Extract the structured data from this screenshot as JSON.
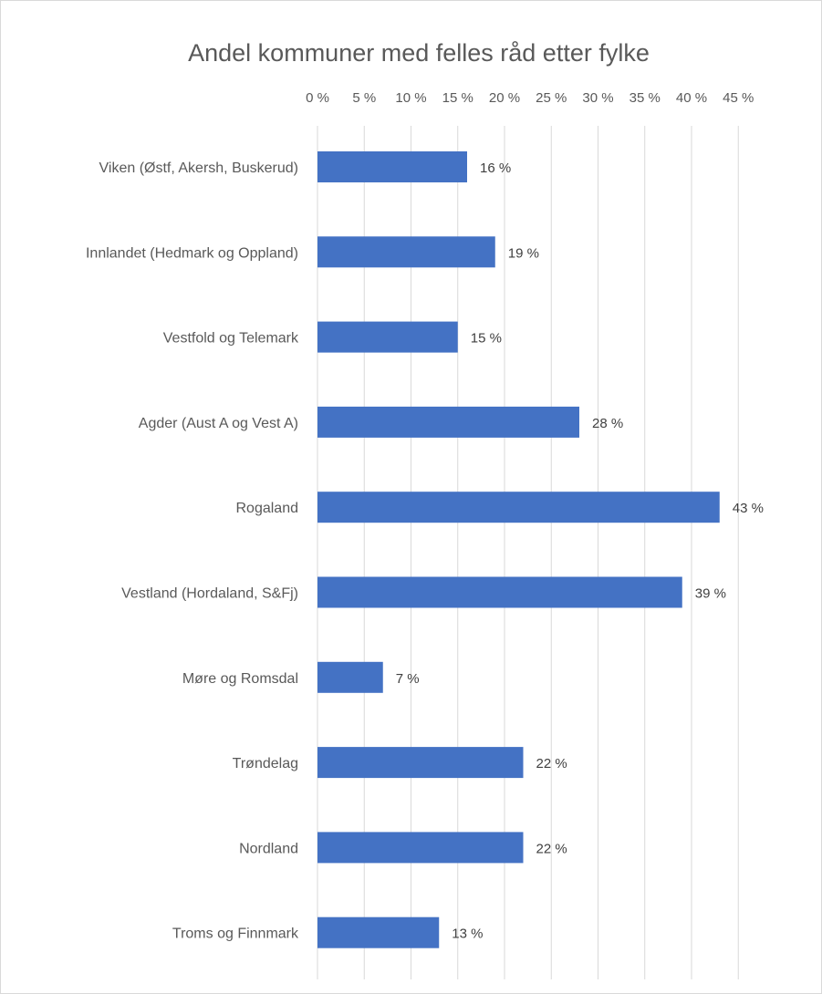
{
  "chart_data": {
    "type": "bar",
    "orientation": "horizontal",
    "title": "Andel kommuner med felles råd etter fylke",
    "xlim": [
      0,
      45
    ],
    "x_ticks": [
      "0 %",
      "5 %",
      "10 %",
      "15 %",
      "20 %",
      "25 %",
      "30 %",
      "35 %",
      "40 %",
      "45 %"
    ],
    "x_axis_position": "top",
    "grid": true,
    "legend": "none",
    "bar_color": "#4472c4",
    "gridline_color": "#d9d9d9",
    "categories": [
      "Viken (Østf, Akersh, Buskerud)",
      "Innlandet (Hedmark og Oppland)",
      "Vestfold og Telemark",
      "Agder (Aust A og Vest A)",
      "Rogaland",
      "Vestland (Hordaland, S&Fj)",
      "Møre og Romsdal",
      "Trøndelag",
      "Nordland",
      "Troms og Finnmark"
    ],
    "values": [
      16,
      19,
      15,
      28,
      43,
      39,
      7,
      22,
      22,
      13
    ],
    "data_labels": [
      "16 %",
      "19 %",
      "15 %",
      "28 %",
      "43 %",
      "39 %",
      "7 %",
      "22 %",
      "22 %",
      "13 %"
    ]
  }
}
